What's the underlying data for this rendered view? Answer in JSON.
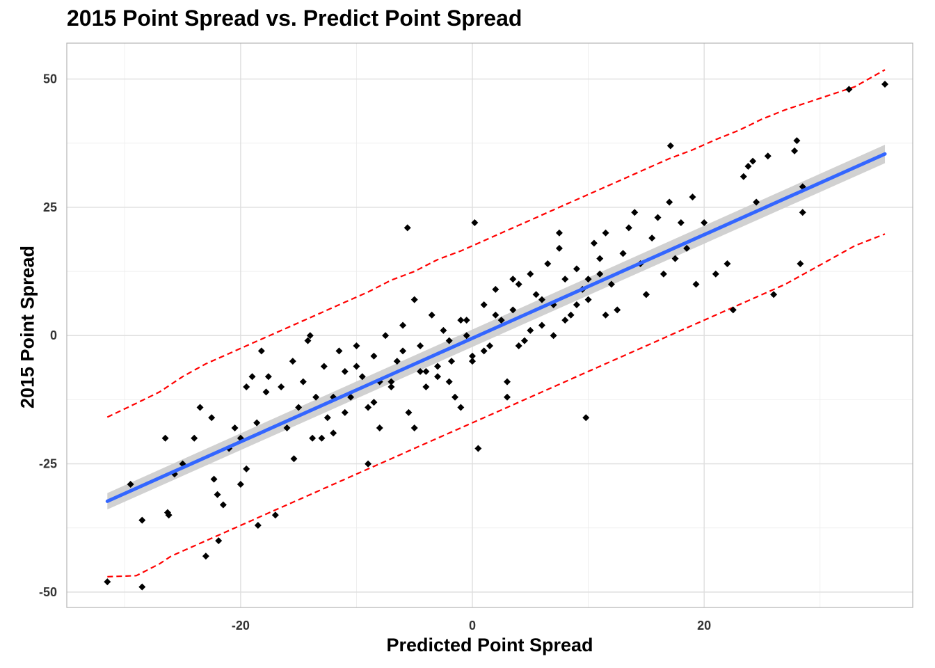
{
  "chart_data": {
    "type": "scatter",
    "title": "2015 Point Spread vs. Predict Point Spread",
    "xlabel": "Predicted Point Spread",
    "ylabel": "2015 Point Spread",
    "xlim": [
      -35,
      38
    ],
    "ylim": [
      -53,
      57
    ],
    "xticks": [
      -20,
      0,
      20
    ],
    "yticks": [
      -50,
      -25,
      0,
      25,
      50
    ],
    "grid": true,
    "colors": {
      "points": "#000000",
      "fit_line": "#3366FF",
      "confidence_band": "#cccccc",
      "prediction_interval": "#FF0000",
      "grid": "#ebebeb",
      "panel_border": "#b3b3b3"
    },
    "fit_line": {
      "x": [
        -31.5,
        35.6
      ],
      "y": [
        -32.3,
        35.4
      ]
    },
    "prediction_interval_upper": {
      "x": [
        -31.5,
        -29,
        -27,
        -26,
        -25,
        -23,
        -21,
        -19,
        -17,
        -15,
        -13,
        -11,
        -9,
        -7,
        -5,
        -3,
        -1,
        1,
        3,
        5,
        7,
        9,
        11,
        13,
        15,
        17,
        19,
        21,
        23,
        25,
        27,
        29,
        31,
        33,
        35.6
      ],
      "y": [
        -15.9,
        -13.2,
        -11.0,
        -9.5,
        -8.0,
        -5.5,
        -3.5,
        -1.5,
        0.5,
        2.5,
        4.5,
        6.5,
        8.5,
        10.8,
        12.5,
        14.8,
        16.5,
        18.5,
        20.5,
        22.5,
        24.5,
        26.5,
        28.5,
        30.5,
        32.5,
        34.5,
        36.2,
        38.2,
        40.0,
        42.2,
        44.0,
        45.5,
        47.0,
        48.5,
        51.8
      ]
    },
    "prediction_interval_lower": {
      "x": [
        -31.5,
        -29,
        -27,
        -26,
        -25,
        -23,
        -21,
        -19,
        -17,
        -15,
        -13,
        -11,
        -9,
        -7,
        -5,
        -3,
        -1,
        1,
        3,
        5,
        7,
        9,
        11,
        13,
        15,
        17,
        19,
        21,
        23,
        25,
        27,
        29,
        31,
        33,
        35.6
      ],
      "y": [
        -47.0,
        -46.8,
        -44.5,
        -43.0,
        -42.0,
        -40.0,
        -38.0,
        -36.0,
        -34.0,
        -32.0,
        -30.0,
        -28.0,
        -26.0,
        -24.0,
        -22.0,
        -20.0,
        -18.0,
        -16.0,
        -14.0,
        -12.0,
        -10.0,
        -8.0,
        -6.0,
        -4.0,
        -2.0,
        0.0,
        2.0,
        4.0,
        6.0,
        8.0,
        10.0,
        12.5,
        15.0,
        17.5,
        19.8
      ]
    },
    "points": {
      "x": [
        -31.5,
        -29.5,
        -28.5,
        -28.5,
        -26.5,
        -26.3,
        -26.2,
        -25.7,
        -25,
        -24,
        -23.5,
        -23,
        -22.5,
        -22.3,
        -22,
        -21.9,
        -21.5,
        -21,
        -20.5,
        -20,
        -20,
        -19.5,
        -19.5,
        -19,
        -18.6,
        -18.5,
        -18.2,
        -17.8,
        -17.6,
        -17,
        -16.5,
        -16,
        -15.5,
        -15.4,
        -15,
        -14.6,
        -14.2,
        -13.8,
        -13.5,
        -12.8,
        -12.5,
        -12,
        -11.5,
        -11,
        -10.5,
        -10,
        -9.5,
        -9,
        -8.5,
        -8,
        -7.5,
        -7,
        -6.5,
        -6,
        -5.6,
        -5.5,
        -5,
        -4.5,
        -4,
        -3.5,
        -3,
        -2.5,
        -2,
        -1.8,
        -1.5,
        -1,
        -0.5,
        0,
        0.2,
        0.5,
        1,
        1.5,
        2,
        2.5,
        3,
        3.5,
        4,
        4.5,
        5,
        5.5,
        6,
        6.5,
        7,
        7.5,
        8,
        8.5,
        9,
        9.5,
        9.8,
        10,
        10.5,
        11,
        11.5,
        12,
        12.5,
        13,
        13.5,
        14,
        14.5,
        15,
        15.5,
        16,
        16.5,
        17,
        17.1,
        17.5,
        18,
        18.5,
        19,
        19.3,
        20,
        21,
        22,
        22.5,
        23.4,
        23.8,
        24.2,
        24.5,
        25.5,
        26,
        27.8,
        28,
        28.3,
        28.5,
        28.5,
        32.5,
        35.6,
        -12,
        -10,
        -8,
        -6,
        -4,
        -2,
        0,
        2,
        4,
        6,
        8,
        10,
        -13,
        -11,
        -7,
        -3,
        1,
        5,
        9,
        13,
        -14,
        -9,
        -5,
        -1,
        3,
        7,
        11,
        15,
        -8.5,
        -4.5,
        -0.5,
        3.5,
        7.5,
        11.5
      ],
      "y": [
        -48,
        -29,
        -49,
        -36,
        -20,
        -34.5,
        -35,
        -27,
        -25,
        -20,
        -14,
        -43,
        -16,
        -28,
        -31,
        -40,
        -33,
        -22,
        -18,
        -29,
        -20,
        -10,
        -26,
        -8,
        -17,
        -37,
        -3,
        -11,
        -8,
        -35,
        -10,
        -18,
        -5,
        -24,
        -14,
        -9,
        -1,
        -20,
        -12,
        -6,
        -16,
        -19,
        -3,
        -7,
        -12,
        -2,
        -8,
        -14,
        -4,
        -18,
        0,
        -9,
        -5,
        2,
        21,
        -15,
        7,
        -2,
        -10,
        4,
        -6,
        1,
        -9,
        -5,
        -12,
        3,
        0,
        -4,
        22,
        -22,
        6,
        -2,
        9,
        3,
        -12,
        5,
        10,
        -1,
        12,
        8,
        2,
        14,
        6,
        17,
        11,
        4,
        13,
        9,
        -16,
        7,
        18,
        12,
        20,
        10,
        5,
        16,
        21,
        24,
        14,
        8,
        19,
        23,
        12,
        26,
        37,
        15,
        22,
        17,
        27,
        10,
        22,
        12,
        14,
        5,
        31,
        33,
        34,
        26,
        35,
        8,
        36,
        38,
        14,
        29,
        24,
        48,
        49,
        -12,
        -6,
        -9,
        -3,
        -7,
        -1,
        -5,
        4,
        -2,
        7,
        3,
        11,
        -20,
        -15,
        -10,
        -8,
        -3,
        1,
        6,
        16,
        0,
        -25,
        -18,
        -14,
        -9,
        0,
        15,
        8,
        -13,
        -7,
        3,
        11,
        20,
        4
      ]
    }
  }
}
